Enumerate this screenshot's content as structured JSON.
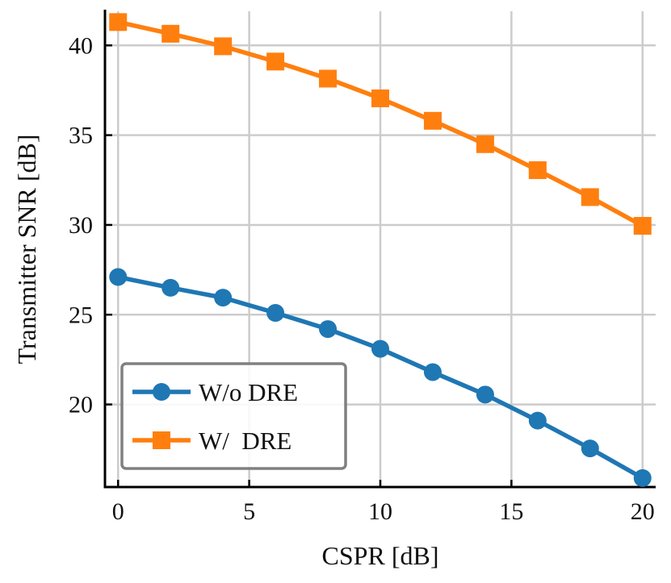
{
  "chart_data": {
    "type": "line",
    "title": "",
    "xlabel": "CSPR [dB]",
    "ylabel": "Transmitter SNR [dB]",
    "xlim": [
      -0.5,
      20.5
    ],
    "ylim": [
      15.4,
      41.9
    ],
    "xticks": [
      0,
      5,
      10,
      15,
      20
    ],
    "yticks": [
      20,
      25,
      30,
      35,
      40
    ],
    "grid": true,
    "legend_position": "lower-left",
    "x": [
      0,
      2,
      4,
      6,
      8,
      10,
      12,
      14,
      16,
      18,
      20
    ],
    "series": [
      {
        "name": "W/o DRE",
        "marker": "circle",
        "color": "#1f77b4",
        "values": [
          27.1,
          26.5,
          25.95,
          25.1,
          24.2,
          23.1,
          21.8,
          20.55,
          19.1,
          17.55,
          15.9
        ]
      },
      {
        "name": "W/  DRE",
        "marker": "square",
        "color": "#ff7f0e",
        "values": [
          41.3,
          40.65,
          39.95,
          39.1,
          38.15,
          37.05,
          35.8,
          34.5,
          33.05,
          31.55,
          29.95
        ]
      }
    ]
  }
}
